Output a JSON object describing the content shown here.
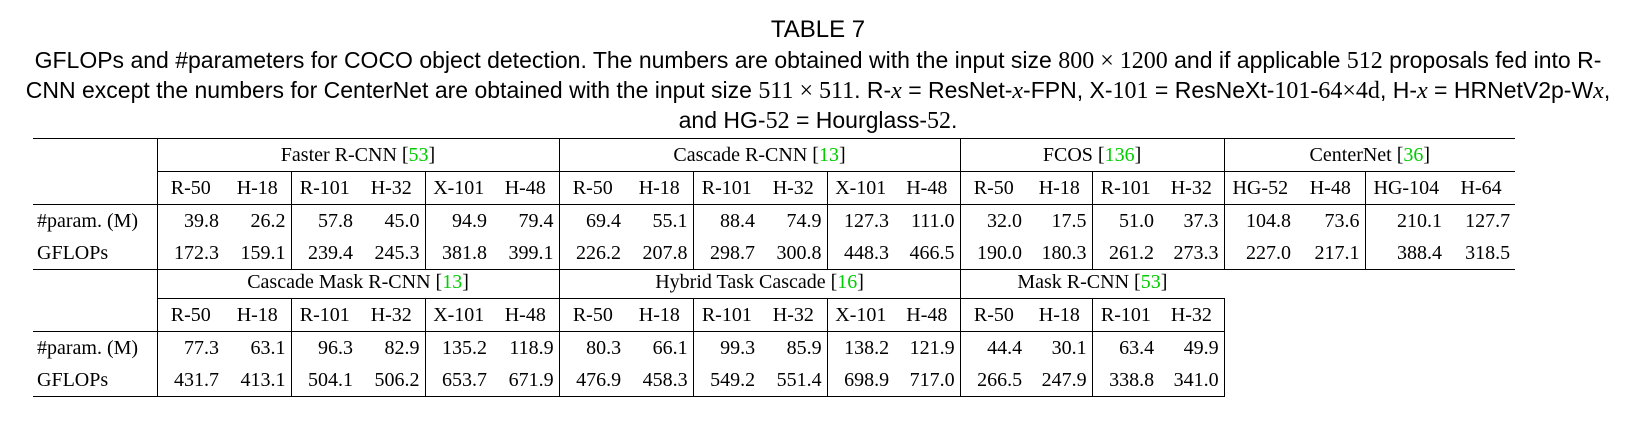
{
  "title": "TABLE 7",
  "caption": {
    "p1": "GFLOPs and #parameters for COCO object detection. The numbers are obtained with the input size ",
    "m1": "800 × 1200",
    "p2": " and if applicable ",
    "m2": "512",
    "p3": " proposals fed into R-CNN except the numbers for CenterNet are obtained with the input size ",
    "m3": "511 × 511",
    "p4": ". R-",
    "v1": "x",
    "p5": " = ResNet-",
    "v2": "x",
    "p6": "-FPN, X-",
    "m4": "101",
    "p7": " = ResNeXt-",
    "m5": "101-64×4d",
    "p8": ", H-",
    "v3": "x",
    "p9": " = HRNetV2p-W",
    "v4": "x",
    "p10": ", and HG-",
    "m6": "52",
    "p11": " = Hourglass-",
    "m7": "52",
    "p12": "."
  },
  "table1": {
    "groups": [
      {
        "name": "Faster R-CNN [",
        "ref": "53",
        "close": "]"
      },
      {
        "name": "Cascade R-CNN [",
        "ref": "13",
        "close": "]"
      },
      {
        "name": "FCOS [",
        "ref": "136",
        "close": "]"
      },
      {
        "name": "CenterNet [",
        "ref": "36",
        "close": "]"
      }
    ],
    "cols": [
      "R-50",
      "H-18",
      "R-101",
      "H-32",
      "X-101",
      "H-48",
      "R-50",
      "H-18",
      "R-101",
      "H-32",
      "X-101",
      "H-48",
      "R-50",
      "H-18",
      "R-101",
      "H-32",
      "HG-52",
      "H-48",
      "HG-104",
      "H-64"
    ],
    "rows": [
      {
        "label": "#param. (M)",
        "values": [
          "39.8",
          "26.2",
          "57.8",
          "45.0",
          "94.9",
          "79.4",
          "69.4",
          "55.1",
          "88.4",
          "74.9",
          "127.3",
          "111.0",
          "32.0",
          "17.5",
          "51.0",
          "37.3",
          "104.8",
          "73.6",
          "210.1",
          "127.7"
        ]
      },
      {
        "label": "GFLOPs",
        "values": [
          "172.3",
          "159.1",
          "239.4",
          "245.3",
          "381.8",
          "399.1",
          "226.2",
          "207.8",
          "298.7",
          "300.8",
          "448.3",
          "466.5",
          "190.0",
          "180.3",
          "261.2",
          "273.3",
          "227.0",
          "217.1",
          "388.4",
          "318.5"
        ]
      }
    ]
  },
  "table2": {
    "groups": [
      {
        "name": "Cascade Mask R-CNN [",
        "ref": "13",
        "close": "]"
      },
      {
        "name": "Hybrid Task Cascade [",
        "ref": "16",
        "close": "]"
      },
      {
        "name": "Mask R-CNN [",
        "ref": "53",
        "close": "]"
      }
    ],
    "cols": [
      "R-50",
      "H-18",
      "R-101",
      "H-32",
      "X-101",
      "H-48",
      "R-50",
      "H-18",
      "R-101",
      "H-32",
      "X-101",
      "H-48",
      "R-50",
      "H-18",
      "R-101",
      "H-32"
    ],
    "rows": [
      {
        "label": "#param. (M)",
        "values": [
          "77.3",
          "63.1",
          "96.3",
          "82.9",
          "135.2",
          "118.9",
          "80.3",
          "66.1",
          "99.3",
          "85.9",
          "138.2",
          "121.9",
          "44.4",
          "30.1",
          "63.4",
          "49.9"
        ]
      },
      {
        "label": "GFLOPs",
        "values": [
          "431.7",
          "413.1",
          "504.1",
          "506.2",
          "653.7",
          "671.9",
          "476.9",
          "458.3",
          "549.2",
          "551.4",
          "698.9",
          "717.0",
          "266.5",
          "247.9",
          "338.8",
          "341.0"
        ]
      }
    ]
  }
}
